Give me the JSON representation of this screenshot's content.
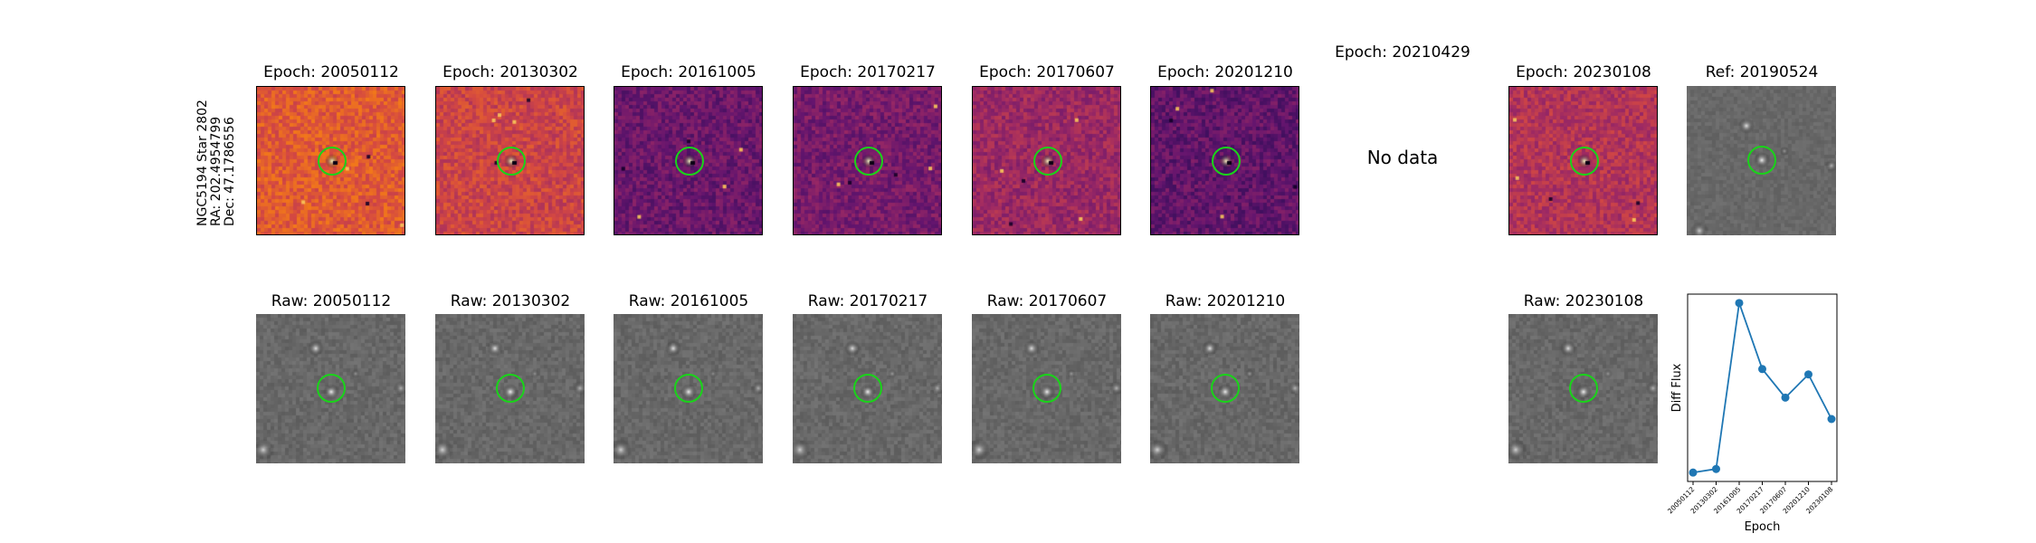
{
  "star_label": {
    "name": "NGC5194 Star 2802",
    "ra": "RA: 202.4954799",
    "dec": "Dec: 47.1786556"
  },
  "diff_panels": [
    {
      "title": "Epoch: 20050112",
      "palette": "magma",
      "base": 0.62
    },
    {
      "title": "Epoch: 20130302",
      "palette": "magma",
      "base": 0.55
    },
    {
      "title": "Epoch: 20161005",
      "palette": "magma",
      "base": 0.3
    },
    {
      "title": "Epoch: 20170217",
      "palette": "magma",
      "base": 0.33
    },
    {
      "title": "Epoch: 20170607",
      "palette": "magma",
      "base": 0.42
    },
    {
      "title": "Epoch: 20201210",
      "palette": "magma",
      "base": 0.28
    },
    {
      "title": "Epoch: 20210429",
      "palette": "none",
      "no_data": "No data"
    },
    {
      "title": "Epoch: 20230108",
      "palette": "magma",
      "base": 0.48
    },
    {
      "title": "Ref: 20190524",
      "palette": "gray",
      "base": 0.45
    }
  ],
  "raw_panels": [
    {
      "title": "Raw: 20050112"
    },
    {
      "title": "Raw: 20130302"
    },
    {
      "title": "Raw: 20161005"
    },
    {
      "title": "Raw: 20170217"
    },
    {
      "title": "Raw: 20170607"
    },
    {
      "title": "Raw: 20201210"
    },
    {
      "title": "Raw: 20230108"
    }
  ],
  "colors": {
    "ring": "#19d419",
    "line": "#1f77b4"
  },
  "chart_data": {
    "type": "line",
    "title": "",
    "xlabel": "Epoch",
    "ylabel": "Diff Flux",
    "categories": [
      "20050112",
      "20130302",
      "20161005",
      "20170217",
      "20170607",
      "20201210",
      "20230108"
    ],
    "series": [
      {
        "values": [
          0.05,
          0.07,
          1.0,
          0.63,
          0.47,
          0.6,
          0.35
        ]
      }
    ],
    "ylim": [
      0,
      1.05
    ],
    "grid": false,
    "legend": "none"
  }
}
